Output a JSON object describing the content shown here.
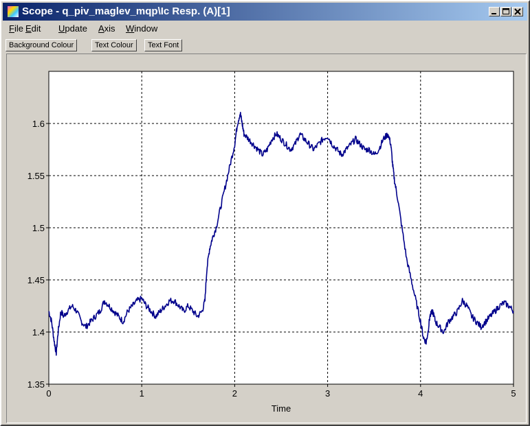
{
  "window": {
    "title": "Scope - q_piv_maglev_mqp\\Ic Resp. (A)[1]"
  },
  "menu": [
    {
      "label_underlined": "F",
      "label_rest": "ile"
    },
    {
      "label_underlined": "E",
      "label_rest": "dit"
    },
    {
      "label_underlined": "U",
      "label_rest": "pdate"
    },
    {
      "label_underlined": "A",
      "label_rest": "xis"
    },
    {
      "label_underlined": "W",
      "label_rest": "indow"
    }
  ],
  "toolbar": {
    "background_colour": "Background Colour",
    "text_colour": "Text Colour",
    "text_font": "Text Font"
  },
  "chart_data": {
    "type": "line",
    "xlabel": "Time",
    "ylabel": "",
    "xlim": [
      0,
      5
    ],
    "ylim": [
      1.35,
      1.65
    ],
    "xticks": [
      "0",
      "1",
      "2",
      "3",
      "4",
      "5"
    ],
    "yticks": [
      "1.35",
      "1.4",
      "1.45",
      "1.5",
      "1.55",
      "1.6"
    ],
    "grid": true,
    "line_color": "#00008b",
    "x": [
      0.0,
      0.03,
      0.06,
      0.08,
      0.1,
      0.13,
      0.16,
      0.2,
      0.25,
      0.3,
      0.35,
      0.4,
      0.45,
      0.5,
      0.55,
      0.6,
      0.65,
      0.7,
      0.75,
      0.8,
      0.85,
      0.9,
      0.95,
      1.0,
      1.05,
      1.1,
      1.15,
      1.2,
      1.25,
      1.3,
      1.35,
      1.4,
      1.45,
      1.5,
      1.55,
      1.6,
      1.65,
      1.68,
      1.7,
      1.73,
      1.76,
      1.8,
      1.85,
      1.9,
      1.95,
      2.0,
      2.03,
      2.06,
      2.08,
      2.1,
      2.15,
      2.2,
      2.25,
      2.3,
      2.35,
      2.4,
      2.45,
      2.5,
      2.55,
      2.6,
      2.65,
      2.7,
      2.75,
      2.8,
      2.85,
      2.9,
      2.95,
      3.0,
      3.05,
      3.1,
      3.15,
      3.2,
      3.25,
      3.3,
      3.35,
      3.4,
      3.45,
      3.5,
      3.55,
      3.6,
      3.65,
      3.68,
      3.7,
      3.72,
      3.75,
      3.8,
      3.85,
      3.9,
      3.95,
      4.0,
      4.03,
      4.06,
      4.08,
      4.1,
      4.13,
      4.16,
      4.2,
      4.25,
      4.3,
      4.35,
      4.4,
      4.45,
      4.5,
      4.55,
      4.6,
      4.65,
      4.7,
      4.75,
      4.8,
      4.85,
      4.9,
      4.95,
      5.0
    ],
    "y": [
      1.42,
      1.41,
      1.39,
      1.38,
      1.4,
      1.42,
      1.415,
      1.42,
      1.425,
      1.42,
      1.41,
      1.405,
      1.41,
      1.415,
      1.42,
      1.43,
      1.425,
      1.42,
      1.415,
      1.41,
      1.42,
      1.425,
      1.43,
      1.432,
      1.425,
      1.42,
      1.415,
      1.42,
      1.425,
      1.43,
      1.43,
      1.425,
      1.42,
      1.425,
      1.42,
      1.415,
      1.42,
      1.43,
      1.46,
      1.48,
      1.49,
      1.5,
      1.52,
      1.54,
      1.56,
      1.58,
      1.6,
      1.61,
      1.6,
      1.59,
      1.585,
      1.58,
      1.575,
      1.57,
      1.575,
      1.585,
      1.59,
      1.585,
      1.58,
      1.575,
      1.58,
      1.59,
      1.585,
      1.58,
      1.575,
      1.58,
      1.585,
      1.588,
      1.58,
      1.575,
      1.57,
      1.575,
      1.58,
      1.585,
      1.58,
      1.575,
      1.575,
      1.57,
      1.575,
      1.585,
      1.59,
      1.58,
      1.56,
      1.545,
      1.53,
      1.5,
      1.47,
      1.45,
      1.43,
      1.41,
      1.395,
      1.39,
      1.4,
      1.415,
      1.42,
      1.41,
      1.405,
      1.4,
      1.41,
      1.415,
      1.42,
      1.43,
      1.425,
      1.415,
      1.41,
      1.405,
      1.41,
      1.415,
      1.42,
      1.425,
      1.428,
      1.425,
      1.42
    ]
  }
}
